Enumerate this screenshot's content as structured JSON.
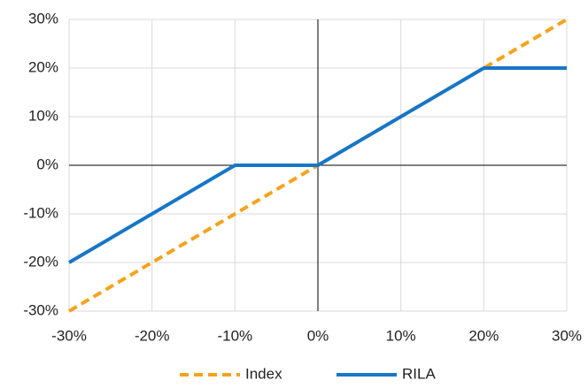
{
  "chart_data": {
    "type": "line",
    "x": [
      -30,
      -10,
      0,
      20,
      30
    ],
    "series": [
      {
        "name": "Index",
        "color": "#f5a31c",
        "dashed": true,
        "values": [
          -30,
          -10,
          0,
          20,
          30
        ]
      },
      {
        "name": "RILA",
        "color": "#1676c8",
        "dashed": false,
        "values": [
          -20,
          0,
          0,
          20,
          20
        ]
      }
    ],
    "xlim": [
      -30,
      30
    ],
    "ylim": [
      -30,
      30
    ],
    "xticks": [
      {
        "value": -30,
        "label": "-30%"
      },
      {
        "value": -20,
        "label": "-20%"
      },
      {
        "value": -10,
        "label": "-10%"
      },
      {
        "value": 0,
        "label": "0%"
      },
      {
        "value": 10,
        "label": "10%"
      },
      {
        "value": 20,
        "label": "20%"
      },
      {
        "value": 30,
        "label": "30%"
      }
    ],
    "yticks": [
      {
        "value": -30,
        "label": "-30%"
      },
      {
        "value": -20,
        "label": "-20%"
      },
      {
        "value": -10,
        "label": "-10%"
      },
      {
        "value": 0,
        "label": "0%"
      },
      {
        "value": 10,
        "label": "10%"
      },
      {
        "value": 20,
        "label": "20%"
      },
      {
        "value": 30,
        "label": "30%"
      }
    ],
    "grid": true,
    "legend": "bottom"
  }
}
